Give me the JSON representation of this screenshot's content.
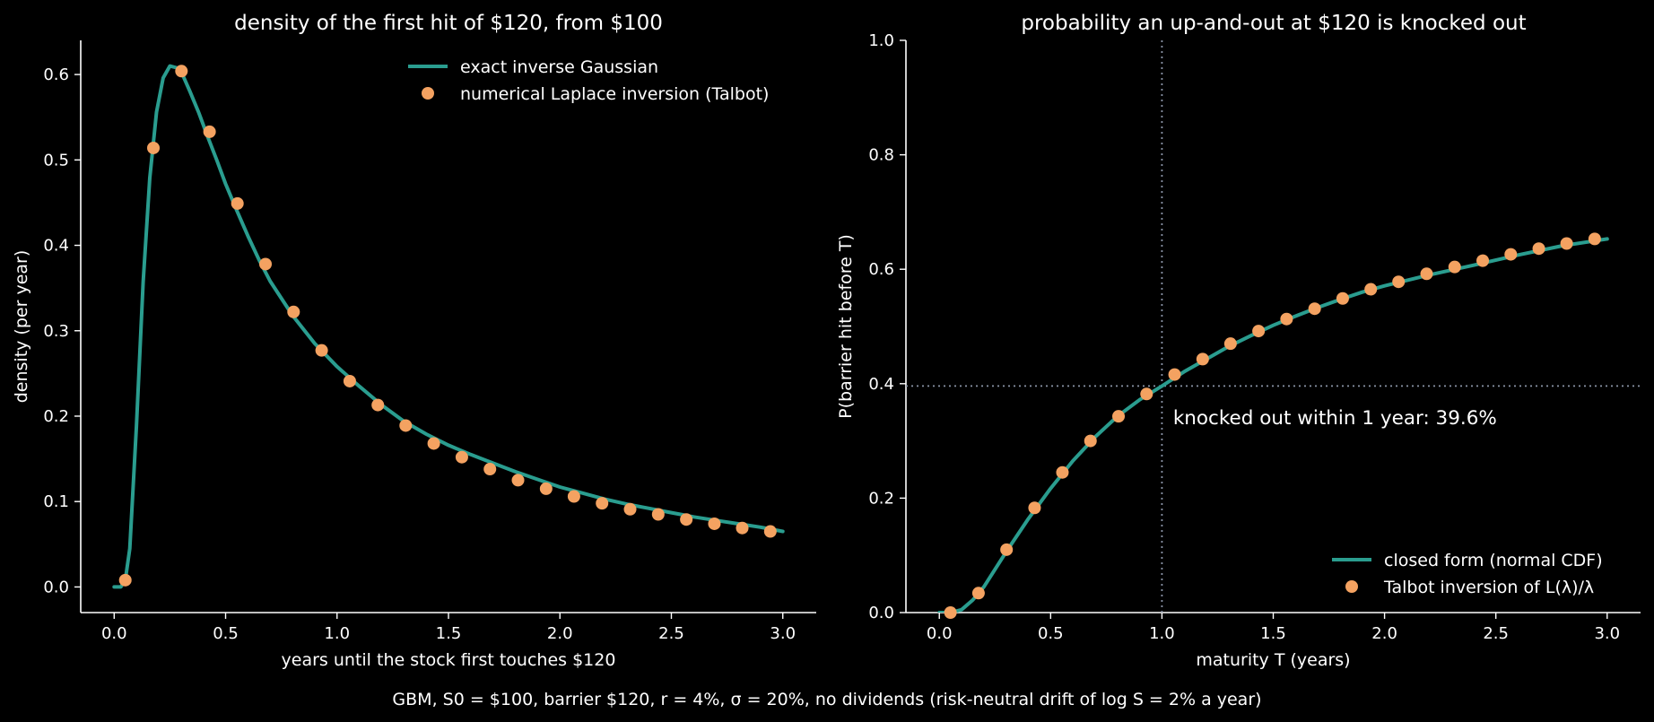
{
  "figure": {
    "background": "#000000",
    "caption": "GBM, S0 = $100, barrier $120, r = 4%, σ = 20%, no dividends (risk-neutral drift of log S = 2% a year)",
    "caption_color": "#8a93a6"
  },
  "colors": {
    "curve": "#2a9d8f",
    "points": "#f4a261",
    "text": "#ffffff",
    "reference_lines": "#8a93a6"
  },
  "chart_data": [
    {
      "type": "line",
      "title": "density of the first hit of $120, from $100",
      "xlabel": "years until the stock first touches $120",
      "ylabel": "density (per year)",
      "xlim": [
        -0.15,
        3.15
      ],
      "ylim": [
        -0.03,
        0.64
      ],
      "xticks": [
        0.0,
        0.5,
        1.0,
        1.5,
        2.0,
        2.5,
        3.0
      ],
      "yticks": [
        0.0,
        0.1,
        0.2,
        0.3,
        0.4,
        0.5,
        0.6
      ],
      "grid": false,
      "legend_position": "top-right",
      "series": [
        {
          "name": "exact inverse Gaussian",
          "kind": "line",
          "x": [
            0.0,
            0.03,
            0.05,
            0.07,
            0.1,
            0.13,
            0.16,
            0.19,
            0.22,
            0.25,
            0.28,
            0.31,
            0.34,
            0.38,
            0.42,
            0.46,
            0.5,
            0.55,
            0.6,
            0.65,
            0.7,
            0.8,
            0.9,
            1.0,
            1.1,
            1.2,
            1.3,
            1.4,
            1.5,
            1.6,
            1.7,
            1.8,
            1.9,
            2.0,
            2.1,
            2.2,
            2.3,
            2.4,
            2.5,
            2.6,
            2.7,
            2.8,
            2.9,
            3.0
          ],
          "y": [
            0.0,
            0.0,
            0.008,
            0.045,
            0.188,
            0.357,
            0.479,
            0.556,
            0.596,
            0.61,
            0.608,
            0.598,
            0.58,
            0.555,
            0.527,
            0.5,
            0.472,
            0.441,
            0.411,
            0.383,
            0.358,
            0.318,
            0.285,
            0.258,
            0.235,
            0.213,
            0.194,
            0.179,
            0.166,
            0.155,
            0.145,
            0.135,
            0.126,
            0.117,
            0.11,
            0.103,
            0.097,
            0.092,
            0.087,
            0.082,
            0.078,
            0.074,
            0.07,
            0.065
          ]
        },
        {
          "name": "numerical Laplace inversion (Talbot)",
          "kind": "points",
          "x": [
            0.05,
            0.176,
            0.302,
            0.428,
            0.553,
            0.679,
            0.805,
            0.931,
            1.057,
            1.183,
            1.308,
            1.434,
            1.56,
            1.686,
            1.812,
            1.938,
            2.063,
            2.189,
            2.315,
            2.441,
            2.567,
            2.693,
            2.818,
            2.944
          ],
          "y": [
            0.008,
            0.514,
            0.604,
            0.533,
            0.449,
            0.378,
            0.322,
            0.277,
            0.241,
            0.213,
            0.189,
            0.168,
            0.152,
            0.138,
            0.125,
            0.115,
            0.106,
            0.098,
            0.091,
            0.085,
            0.079,
            0.074,
            0.069,
            0.065
          ]
        }
      ]
    },
    {
      "type": "line",
      "title": "probability an up-and-out at $120 is knocked out",
      "xlabel": "maturity T (years)",
      "ylabel": "P(barrier hit before T)",
      "xlim": [
        -0.15,
        3.15
      ],
      "ylim": [
        0.0,
        1.0
      ],
      "xticks": [
        0.0,
        0.5,
        1.0,
        1.5,
        2.0,
        2.5,
        3.0
      ],
      "yticks": [
        0.0,
        0.2,
        0.4,
        0.6,
        0.8,
        1.0
      ],
      "grid": false,
      "legend_position": "bottom-right",
      "reference_lines": {
        "x": 1.0,
        "y": 0.396,
        "style": "dotted"
      },
      "annotation": {
        "text": "knocked out within 1 year: 39.6%",
        "x": 1.05,
        "y": 0.34
      },
      "series": [
        {
          "name": "closed form (normal CDF)",
          "kind": "line",
          "x": [
            0.0,
            0.05,
            0.1,
            0.15,
            0.2,
            0.3,
            0.4,
            0.5,
            0.6,
            0.7,
            0.8,
            0.9,
            1.0,
            1.1,
            1.2,
            1.3,
            1.4,
            1.5,
            1.6,
            1.7,
            1.8,
            1.9,
            2.0,
            2.2,
            2.4,
            2.6,
            2.8,
            3.0
          ],
          "y": [
            0.0,
            0.0,
            0.005,
            0.022,
            0.045,
            0.106,
            0.164,
            0.217,
            0.265,
            0.307,
            0.343,
            0.372,
            0.396,
            0.421,
            0.443,
            0.465,
            0.484,
            0.502,
            0.518,
            0.533,
            0.547,
            0.56,
            0.571,
            0.59,
            0.607,
            0.625,
            0.641,
            0.653
          ]
        },
        {
          "name": "Talbot inversion of L(λ)/λ",
          "kind": "points",
          "x": [
            0.05,
            0.176,
            0.302,
            0.428,
            0.553,
            0.679,
            0.805,
            0.931,
            1.057,
            1.183,
            1.308,
            1.434,
            1.56,
            1.686,
            1.812,
            1.938,
            2.063,
            2.189,
            2.315,
            2.441,
            2.567,
            2.693,
            2.818,
            2.944
          ],
          "y": [
            0.0,
            0.034,
            0.11,
            0.183,
            0.245,
            0.3,
            0.343,
            0.382,
            0.416,
            0.443,
            0.47,
            0.492,
            0.513,
            0.531,
            0.549,
            0.565,
            0.578,
            0.592,
            0.604,
            0.615,
            0.626,
            0.636,
            0.645,
            0.653
          ]
        }
      ]
    }
  ]
}
